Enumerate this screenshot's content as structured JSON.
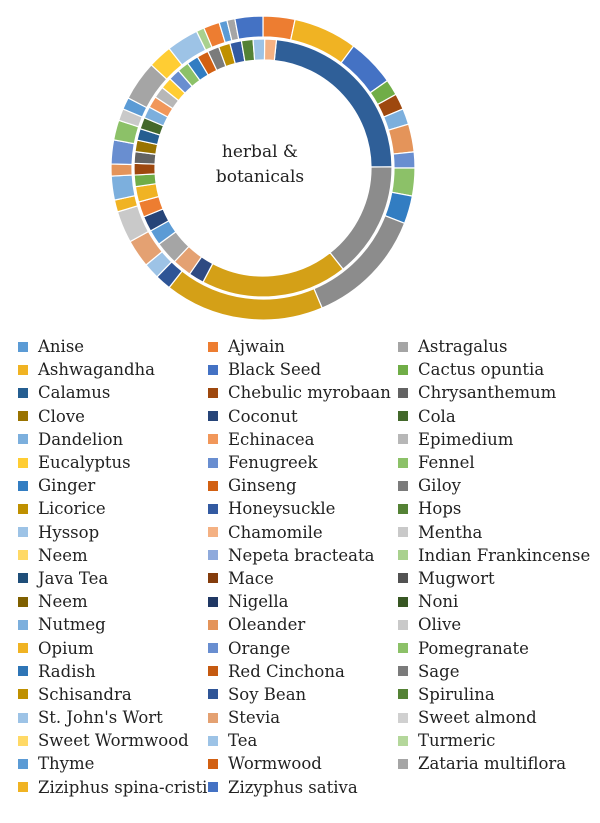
{
  "chart_data": {
    "type": "pie",
    "center_text": [
      "herbal &",
      "botanicals"
    ],
    "inner_ring": [
      {
        "color": "#2f5f98",
        "value": 24
      },
      {
        "color": "#8c8c8c",
        "value": 15
      },
      {
        "color": "#d4a017",
        "value": 19
      },
      {
        "color": "#2e4a82",
        "value": 2
      },
      {
        "color": "#e4a172",
        "value": 2.5
      },
      {
        "color": "#a5a5a5",
        "value": 3
      },
      {
        "color": "#5b9bd5",
        "value": 2
      },
      {
        "color": "#264478",
        "value": 2
      },
      {
        "color": "#ed7d31",
        "value": 2
      },
      {
        "color": "#f0b323",
        "value": 2
      },
      {
        "color": "#70ad47",
        "value": 1.5
      },
      {
        "color": "#9e480e",
        "value": 1.5
      },
      {
        "color": "#636363",
        "value": 1.5
      },
      {
        "color": "#997300",
        "value": 1.5
      },
      {
        "color": "#255e91",
        "value": 1.5
      },
      {
        "color": "#43682b",
        "value": 1.5
      },
      {
        "color": "#7cafdd",
        "value": 1.5
      },
      {
        "color": "#f1975a",
        "value": 1.5
      },
      {
        "color": "#b7b7b7",
        "value": 1.5
      },
      {
        "color": "#ffcd33",
        "value": 1.5
      },
      {
        "color": "#698ed0",
        "value": 1.5
      },
      {
        "color": "#8cc168",
        "value": 1.5
      },
      {
        "color": "#327dc2",
        "value": 1.5
      },
      {
        "color": "#d26012",
        "value": 1.5
      },
      {
        "color": "#7b7b7b",
        "value": 1.5
      },
      {
        "color": "#bf9000",
        "value": 1.5
      },
      {
        "color": "#335aa1",
        "value": 1.5
      },
      {
        "color": "#548235",
        "value": 1.5
      },
      {
        "color": "#9dc3e6",
        "value": 1.5
      },
      {
        "color": "#f4b183",
        "value": 1.5
      }
    ],
    "outer_ring": [
      {
        "color": "#ed7d31",
        "value": 4
      },
      {
        "color": "#f0b323",
        "value": 8
      },
      {
        "color": "#4472c4",
        "value": 6
      },
      {
        "color": "#70ad47",
        "value": 2
      },
      {
        "color": "#9e480e",
        "value": 2
      },
      {
        "color": "#7cafdd",
        "value": 2
      },
      {
        "color": "#e4945a",
        "value": 3.5
      },
      {
        "color": "#698ed0",
        "value": 2
      },
      {
        "color": "#8cc168",
        "value": 3.5
      },
      {
        "color": "#327dc2",
        "value": 3.5
      },
      {
        "color": "#8c8c8c",
        "value": 15
      },
      {
        "color": "#d4a017",
        "value": 20
      },
      {
        "color": "#2e5596",
        "value": 2
      },
      {
        "color": "#9dc3e6",
        "value": 2
      },
      {
        "color": "#e4a172",
        "value": 3.5
      },
      {
        "color": "#c9c9c9",
        "value": 4
      },
      {
        "color": "#f0b323",
        "value": 1.5
      },
      {
        "color": "#7cafdd",
        "value": 3
      },
      {
        "color": "#e4945a",
        "value": 1.5
      },
      {
        "color": "#698ed0",
        "value": 3
      },
      {
        "color": "#8cc168",
        "value": 2.5
      },
      {
        "color": "#c9c9c9",
        "value": 1.5
      },
      {
        "color": "#5b9bd5",
        "value": 1.5
      },
      {
        "color": "#a5a5a5",
        "value": 5
      },
      {
        "color": "#ffcd33",
        "value": 3
      },
      {
        "color": "#9dc3e6",
        "value": 4
      },
      {
        "color": "#a9d18e",
        "value": 1
      },
      {
        "color": "#ed7d31",
        "value": 2
      },
      {
        "color": "#5b9bd5",
        "value": 1
      },
      {
        "color": "#a5a5a5",
        "value": 1
      },
      {
        "color": "#4472c4",
        "value": 3.5
      }
    ],
    "legend": [
      {
        "label": "Anise",
        "color": "#5b9bd5"
      },
      {
        "label": "Ajwain",
        "color": "#ed7d31"
      },
      {
        "label": "Astragalus",
        "color": "#a5a5a5"
      },
      {
        "label": "Ashwagandha",
        "color": "#f0b323"
      },
      {
        "label": "Black Seed",
        "color": "#4472c4"
      },
      {
        "label": "Cactus opuntia",
        "color": "#70ad47"
      },
      {
        "label": "Calamus",
        "color": "#255e91"
      },
      {
        "label": "Chebulic myrobaan",
        "color": "#9e480e"
      },
      {
        "label": "Chrysanthemum",
        "color": "#636363"
      },
      {
        "label": "Clove",
        "color": "#997300"
      },
      {
        "label": "Coconut",
        "color": "#264478"
      },
      {
        "label": "Cola",
        "color": "#43682b"
      },
      {
        "label": "Dandelion",
        "color": "#7cafdd"
      },
      {
        "label": "Echinacea",
        "color": "#f1975a"
      },
      {
        "label": "Epimedium",
        "color": "#b7b7b7"
      },
      {
        "label": "Eucalyptus",
        "color": "#ffcd33"
      },
      {
        "label": "Fenugreek",
        "color": "#698ed0"
      },
      {
        "label": "Fennel",
        "color": "#8cc168"
      },
      {
        "label": "Ginger",
        "color": "#327dc2"
      },
      {
        "label": "Ginseng",
        "color": "#d26012"
      },
      {
        "label": "Giloy",
        "color": "#7b7b7b"
      },
      {
        "label": "Licorice",
        "color": "#bf9000"
      },
      {
        "label": " Honeysuckle",
        "color": "#335aa1"
      },
      {
        "label": "Hops",
        "color": "#548235"
      },
      {
        "label": "Hyssop",
        "color": "#9dc3e6"
      },
      {
        "label": "Chamomile",
        "color": "#f4b183"
      },
      {
        "label": "Mentha",
        "color": "#c9c9c9"
      },
      {
        "label": "Neem",
        "color": "#ffd966"
      },
      {
        "label": "Nepeta bracteata",
        "color": "#8faadc"
      },
      {
        "label": "Indian Frankincense",
        "color": "#a9d18e"
      },
      {
        "label": "Java Tea",
        "color": "#1f4e79"
      },
      {
        "label": "Mace",
        "color": "#843c0c"
      },
      {
        "label": "Mugwort",
        "color": "#525252"
      },
      {
        "label": "Neem",
        "color": "#7f6000"
      },
      {
        "label": "Nigella",
        "color": "#203864"
      },
      {
        "label": "Noni",
        "color": "#385723"
      },
      {
        "label": "Nutmeg",
        "color": "#7cafdd"
      },
      {
        "label": "Oleander",
        "color": "#e4945a"
      },
      {
        "label": "Olive",
        "color": "#c9c9c9"
      },
      {
        "label": "Opium",
        "color": "#f0b323"
      },
      {
        "label": "Orange",
        "color": "#698ed0"
      },
      {
        "label": "Pomegranate",
        "color": "#8cc168"
      },
      {
        "label": "Radish",
        "color": "#2e75b6"
      },
      {
        "label": "Red Cinchona",
        "color": "#c55a11"
      },
      {
        "label": "Sage",
        "color": "#7b7b7b"
      },
      {
        "label": "Schisandra",
        "color": "#bf9000"
      },
      {
        "label": "Soy Bean",
        "color": "#2f5597"
      },
      {
        "label": "Spirulina",
        "color": "#548235"
      },
      {
        "label": "St. John's Wort",
        "color": "#9dc3e6"
      },
      {
        "label": "Stevia",
        "color": "#e4a172"
      },
      {
        "label": "Sweet almond",
        "color": "#d0d0d0"
      },
      {
        "label": "Sweet Wormwood",
        "color": "#ffd966"
      },
      {
        "label": "Tea",
        "color": "#9dc3e6"
      },
      {
        "label": "Turmeric",
        "color": "#b4d79b"
      },
      {
        "label": "Thyme",
        "color": "#5b9bd5"
      },
      {
        "label": "Wormwood",
        "color": "#d26012"
      },
      {
        "label": "Zataria multiflora",
        "color": "#a5a5a5"
      },
      {
        "label": "Ziziphus spina-cristi",
        "color": "#f0b323"
      },
      {
        "label": "Zizyphus sativa",
        "color": "#4472c4"
      }
    ]
  }
}
